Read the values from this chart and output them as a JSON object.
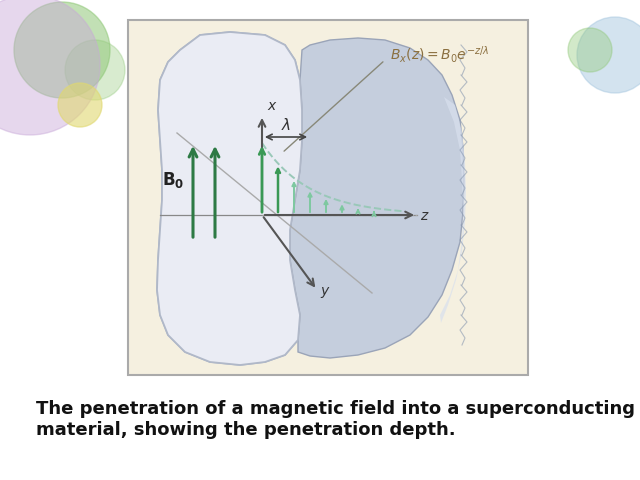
{
  "slide_bg": "#f0ece0",
  "box_bg": "#f5f0e0",
  "box_border": "#aaaaaa",
  "sc_left_color": "#e0e4ec",
  "sc_left_edge": "#c0c4cc",
  "sc_right_color": "#b8c4d4",
  "sc_right_highlight": "#dde4f0",
  "axis_color": "#555555",
  "diag_line_color": "#aaaaaa",
  "arrow_out_color": "#2d7a44",
  "arrow_in_color1": "#3a9955",
  "arrow_in_color2": "#7ec8a0",
  "dashed_color": "#99c8b8",
  "lambda_color": "#333333",
  "formula_color": "#8b7040",
  "formula_line_color": "#888878",
  "B0_label_color": "#222222",
  "caption_text": "The penetration of a magnetic field into a superconducting\nmaterial, showing the penetration depth.",
  "caption_fontsize": 13,
  "formula": "$B_x(z) = B_0e^{-z/\\lambda}$",
  "label_B0": "$\\mathbf{B_0}$",
  "label_lambda": "$\\lambda$",
  "label_x": "$x$",
  "label_y": "$y$",
  "label_z": "$z$",
  "circle1_color": "#90c878",
  "circle2_color": "#90c878",
  "circle3_color": "#a8c8e0",
  "circle4_color": "#c8a8d8",
  "circle5_color": "#e0d870"
}
